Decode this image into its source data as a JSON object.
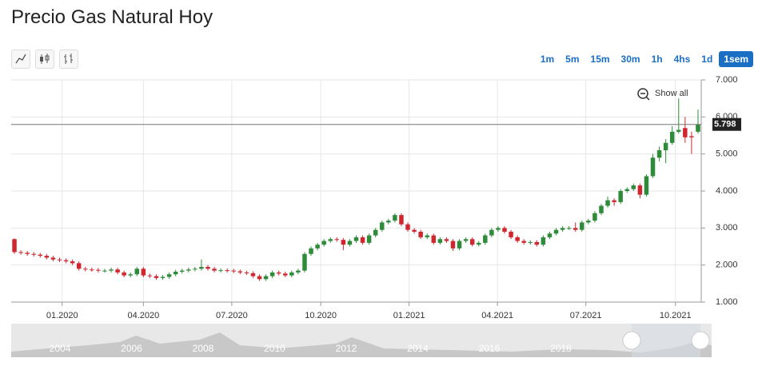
{
  "header": {
    "title": "Precio Gas Natural Hoy"
  },
  "toolbar": {
    "intervals": [
      "1m",
      "5m",
      "15m",
      "30m",
      "1h",
      "4hs",
      "1d",
      "1sem"
    ],
    "selected": 7
  },
  "chart_data": {
    "type": "candlestick",
    "series": {
      "open": [
        2.7,
        2.35,
        2.33,
        2.3,
        2.28,
        2.25,
        2.2,
        2.15,
        2.13,
        2.1,
        2.05,
        1.9,
        1.88,
        1.87,
        1.85,
        1.85,
        1.88,
        1.8,
        1.72,
        1.75,
        1.9,
        1.72,
        1.7,
        1.65,
        1.68,
        1.75,
        1.82,
        1.85,
        1.88,
        1.9,
        1.95,
        1.9,
        1.85,
        1.86,
        1.85,
        1.83,
        1.8,
        1.78,
        1.7,
        1.62,
        1.7,
        1.8,
        1.77,
        1.72,
        1.8,
        1.85,
        2.3,
        2.45,
        2.55,
        2.65,
        2.7,
        2.68,
        2.55,
        2.65,
        2.75,
        2.6,
        2.8,
        2.95,
        3.15,
        3.2,
        3.35,
        3.1,
        2.95,
        2.9,
        2.75,
        2.8,
        2.6,
        2.7,
        2.65,
        2.45,
        2.65,
        2.7,
        2.55,
        2.6,
        2.8,
        2.95,
        3.0,
        2.9,
        2.75,
        2.65,
        2.6,
        2.62,
        2.55,
        2.75,
        2.85,
        2.95,
        3.0,
        3.0,
        2.95,
        3.15,
        3.2,
        3.4,
        3.6,
        3.75,
        3.7,
        4.0,
        4.05,
        4.15,
        3.9,
        4.4,
        4.9,
        5.1,
        5.3,
        5.6,
        5.7,
        5.48,
        5.6
      ],
      "high": [
        2.72,
        2.4,
        2.38,
        2.35,
        2.33,
        2.3,
        2.25,
        2.2,
        2.18,
        2.15,
        2.1,
        1.95,
        1.93,
        1.92,
        1.9,
        1.93,
        1.93,
        1.85,
        1.8,
        1.95,
        1.95,
        1.77,
        1.75,
        1.73,
        1.8,
        1.87,
        1.9,
        1.93,
        1.95,
        2.15,
        2.0,
        1.95,
        1.91,
        1.91,
        1.9,
        1.88,
        1.85,
        1.83,
        1.75,
        1.75,
        1.85,
        1.85,
        1.82,
        1.85,
        1.9,
        2.35,
        2.5,
        2.6,
        2.7,
        2.75,
        2.75,
        2.73,
        2.7,
        2.8,
        2.8,
        2.85,
        3.0,
        3.2,
        3.25,
        3.4,
        3.4,
        3.15,
        3.0,
        2.95,
        2.85,
        2.85,
        2.75,
        2.75,
        2.7,
        2.7,
        2.75,
        2.75,
        2.65,
        2.85,
        3.0,
        3.05,
        3.05,
        2.95,
        2.8,
        2.7,
        2.67,
        2.67,
        2.8,
        2.9,
        3.0,
        3.05,
        3.05,
        3.15,
        3.2,
        3.25,
        3.45,
        3.65,
        3.85,
        3.8,
        4.05,
        4.1,
        4.2,
        4.2,
        4.45,
        5.0,
        5.2,
        5.4,
        5.75,
        6.5,
        6.0,
        5.6,
        6.2
      ],
      "low": [
        2.3,
        2.28,
        2.25,
        2.23,
        2.2,
        2.15,
        2.1,
        2.08,
        2.05,
        2.0,
        1.85,
        1.83,
        1.82,
        1.8,
        1.8,
        1.8,
        1.75,
        1.67,
        1.67,
        1.7,
        1.67,
        1.65,
        1.6,
        1.6,
        1.63,
        1.7,
        1.77,
        1.8,
        1.83,
        1.85,
        1.85,
        1.8,
        1.8,
        1.8,
        1.78,
        1.75,
        1.73,
        1.65,
        1.57,
        1.57,
        1.65,
        1.72,
        1.67,
        1.67,
        1.75,
        1.8,
        2.25,
        2.4,
        2.5,
        2.6,
        2.63,
        2.4,
        2.5,
        2.6,
        2.55,
        2.55,
        2.75,
        2.9,
        3.1,
        3.15,
        3.05,
        2.9,
        2.85,
        2.7,
        2.7,
        2.55,
        2.55,
        2.6,
        2.38,
        2.4,
        2.6,
        2.5,
        2.5,
        2.55,
        2.75,
        2.9,
        2.85,
        2.7,
        2.6,
        2.55,
        2.55,
        2.5,
        2.5,
        2.7,
        2.8,
        2.9,
        2.95,
        2.9,
        2.9,
        3.1,
        3.15,
        3.35,
        3.55,
        3.6,
        3.65,
        3.95,
        4.0,
        3.8,
        3.85,
        4.35,
        4.8,
        4.75,
        5.25,
        5.55,
        5.3,
        5.0,
        5.55
      ],
      "close": [
        2.35,
        2.33,
        2.3,
        2.28,
        2.25,
        2.2,
        2.15,
        2.13,
        2.1,
        2.05,
        1.9,
        1.88,
        1.87,
        1.85,
        1.85,
        1.88,
        1.8,
        1.72,
        1.75,
        1.9,
        1.72,
        1.7,
        1.65,
        1.68,
        1.75,
        1.82,
        1.85,
        1.88,
        1.9,
        1.95,
        1.9,
        1.85,
        1.86,
        1.85,
        1.83,
        1.8,
        1.78,
        1.7,
        1.62,
        1.7,
        1.8,
        1.77,
        1.72,
        1.8,
        1.85,
        2.3,
        2.45,
        2.55,
        2.65,
        2.7,
        2.68,
        2.55,
        2.65,
        2.75,
        2.6,
        2.8,
        2.95,
        3.15,
        3.2,
        3.35,
        3.1,
        2.95,
        2.9,
        2.75,
        2.8,
        2.6,
        2.7,
        2.65,
        2.45,
        2.65,
        2.7,
        2.55,
        2.6,
        2.8,
        2.95,
        3.0,
        2.9,
        2.75,
        2.65,
        2.6,
        2.62,
        2.55,
        2.75,
        2.85,
        2.95,
        3.0,
        3.0,
        2.95,
        3.15,
        3.2,
        3.4,
        3.6,
        3.75,
        3.7,
        4.0,
        4.05,
        4.15,
        3.9,
        4.4,
        4.9,
        5.1,
        5.3,
        5.6,
        5.65,
        5.45,
        5.45,
        5.798
      ]
    },
    "up_color": "#2e8b3a",
    "down_color": "#d0262e",
    "ylim": [
      1,
      7
    ],
    "yticks": [
      {
        "value": 1,
        "label": "1.000"
      },
      {
        "value": 2,
        "label": "2.000"
      },
      {
        "value": 3,
        "label": "3.000"
      },
      {
        "value": 4,
        "label": "4.000"
      },
      {
        "value": 5,
        "label": "5.000"
      },
      {
        "value": 6,
        "label": "6.000"
      },
      {
        "value": 7,
        "label": "7.000"
      }
    ],
    "xlim": [
      -0.5,
      106.5
    ],
    "xticks": [
      {
        "value": 7.4,
        "label": "01.2020"
      },
      {
        "value": 20.0,
        "label": "04.2020"
      },
      {
        "value": 33.7,
        "label": "07.2020"
      },
      {
        "value": 47.5,
        "label": "10.2020"
      },
      {
        "value": 61.2,
        "label": "01.2021"
      },
      {
        "value": 74.9,
        "label": "04.2021"
      },
      {
        "value": 88.6,
        "label": "07.2021"
      },
      {
        "value": 102.5,
        "label": "10.2021"
      }
    ],
    "grid": true,
    "last_price": {
      "value": 5.798,
      "label": "5.798"
    },
    "zoom_button": "Show all"
  },
  "navigator": {
    "labels": [
      "2004",
      "2006",
      "2008",
      "2010",
      "2012",
      "2014",
      "2016",
      "2018"
    ]
  }
}
